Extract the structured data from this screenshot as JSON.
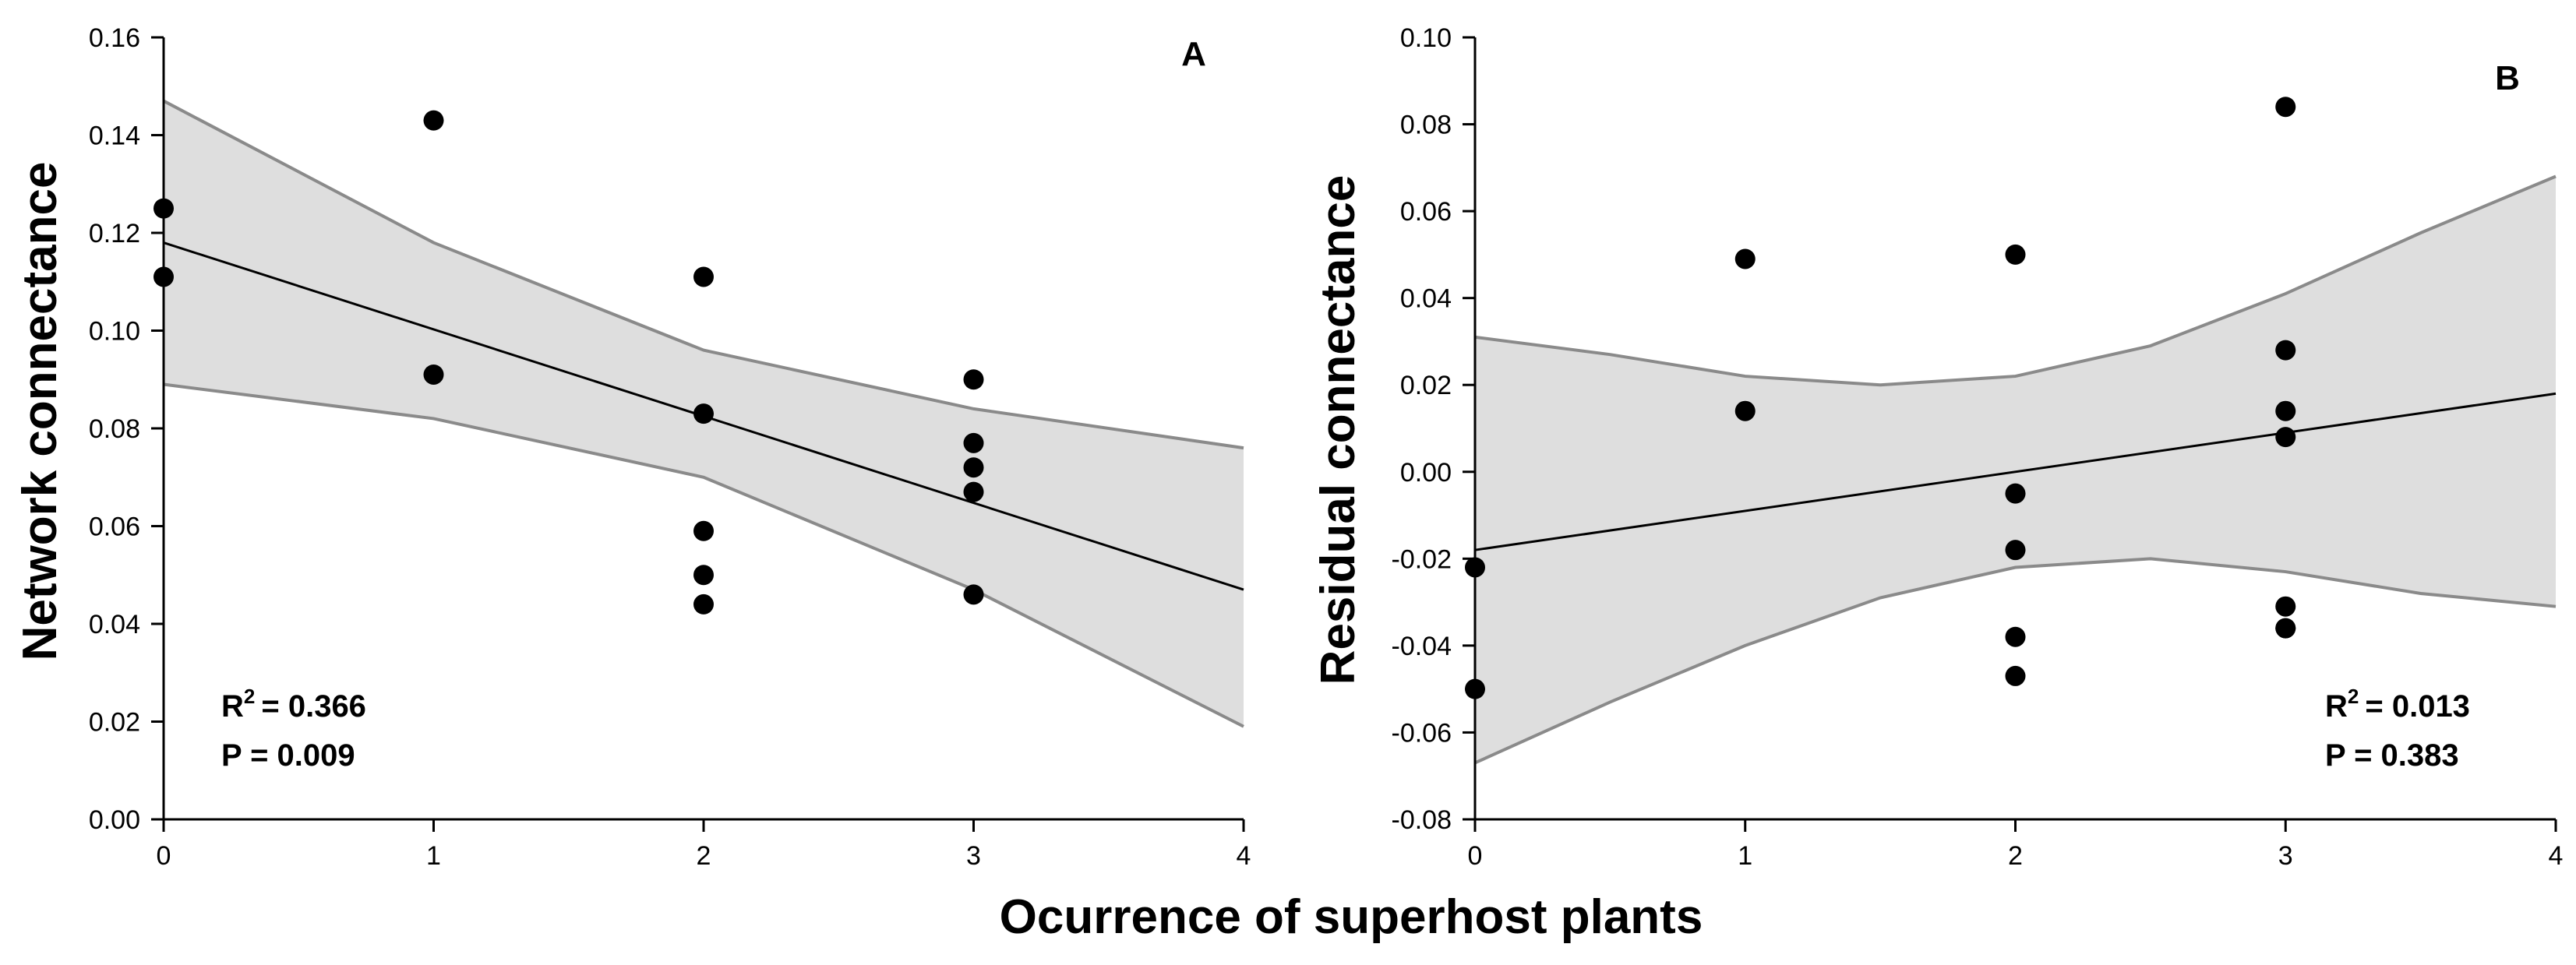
{
  "xlabel": "Ocurrence of superhost plants",
  "chart_data": [
    {
      "type": "scatter",
      "panel_label": "A",
      "ylabel": "Network connectance",
      "xlim": [
        0,
        4
      ],
      "ylim": [
        0,
        0.16
      ],
      "x_ticks": [
        "0",
        "1",
        "2",
        "3",
        "4"
      ],
      "y_ticks": [
        "0.00",
        "0.02",
        "0.04",
        "0.06",
        "0.08",
        "0.10",
        "0.12",
        "0.14",
        "0.16"
      ],
      "points": {
        "x": [
          0,
          0,
          1,
          1,
          2,
          2,
          2,
          2,
          2,
          3,
          3,
          3,
          3,
          3
        ],
        "y": [
          0.125,
          0.111,
          0.143,
          0.091,
          0.111,
          0.083,
          0.059,
          0.05,
          0.044,
          0.09,
          0.077,
          0.072,
          0.067,
          0.046
        ]
      },
      "regression_line": {
        "x": [
          0,
          4
        ],
        "y": [
          0.118,
          0.047
        ]
      },
      "confidence_band": {
        "x": [
          0,
          1,
          2,
          3,
          4
        ],
        "upper": [
          0.147,
          0.118,
          0.096,
          0.084,
          0.076
        ],
        "lower": [
          0.089,
          0.082,
          0.07,
          0.047,
          0.019
        ]
      },
      "stats": {
        "r2_label": "R",
        "r2_sup": "2",
        "r2_value": "= 0.366",
        "p_text": "P = 0.009"
      }
    },
    {
      "type": "scatter",
      "panel_label": "B",
      "ylabel": "Residual connectance",
      "xlim": [
        0,
        4
      ],
      "ylim": [
        -0.08,
        0.1
      ],
      "x_ticks": [
        "0",
        "1",
        "2",
        "3",
        "4"
      ],
      "y_ticks": [
        "-0.08",
        "-0.06",
        "-0.04",
        "-0.02",
        "0.00",
        "0.02",
        "0.04",
        "0.06",
        "0.08",
        "0.10"
      ],
      "points": {
        "x": [
          0,
          0,
          1,
          1,
          2,
          2,
          2,
          2,
          2,
          3,
          3,
          3,
          3,
          3,
          3,
          3
        ],
        "y": [
          -0.022,
          -0.05,
          0.049,
          0.014,
          0.05,
          -0.005,
          -0.018,
          -0.038,
          -0.047,
          0.084,
          0.028,
          0.014,
          0.008,
          -0.031,
          -0.036,
          -0.036
        ]
      },
      "regression_line": {
        "x": [
          0,
          4
        ],
        "y": [
          -0.018,
          0.018
        ]
      },
      "confidence_band": {
        "x": [
          0,
          0.5,
          1,
          1.5,
          2,
          2.5,
          3,
          3.5,
          4
        ],
        "upper": [
          0.031,
          0.027,
          0.022,
          0.02,
          0.022,
          0.029,
          0.041,
          0.055,
          0.068
        ],
        "lower": [
          -0.067,
          -0.053,
          -0.04,
          -0.029,
          -0.022,
          -0.02,
          -0.023,
          -0.028,
          -0.031
        ]
      },
      "stats": {
        "r2_label": "R",
        "r2_sup": "2",
        "r2_value": "= 0.013",
        "p_text": "P = 0.383"
      }
    }
  ]
}
